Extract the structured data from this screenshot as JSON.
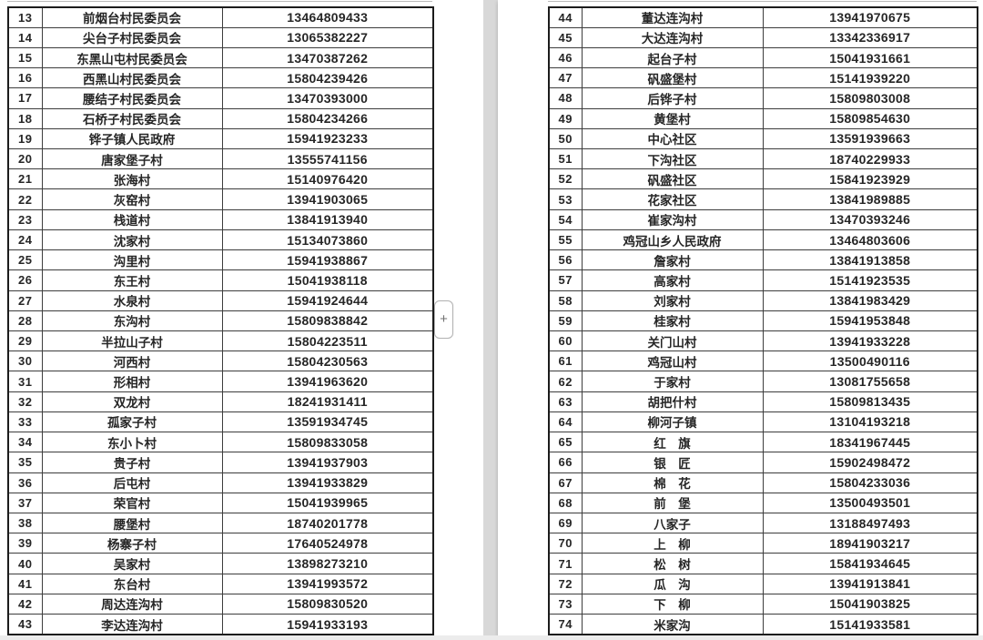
{
  "viewer": {
    "gap_color": "#d8d8d8",
    "page_color": "#ffffff",
    "text_color": "#262626"
  },
  "expand_button": {
    "label": "+"
  },
  "left_table": {
    "columns": [
      "row-number",
      "organization-name",
      "phone-number"
    ],
    "rows": [
      {
        "no": "13",
        "name": "前烟台村民委员会",
        "phone": "13464809433"
      },
      {
        "no": "14",
        "name": "尖台子村民委员会",
        "phone": "13065382227"
      },
      {
        "no": "15",
        "name": "东黑山屯村民委员会",
        "phone": "13470387262"
      },
      {
        "no": "16",
        "name": "西黑山村民委员会",
        "phone": "15804239426"
      },
      {
        "no": "17",
        "name": "腰结子村民委员会",
        "phone": "13470393000"
      },
      {
        "no": "18",
        "name": "石桥子村民委员会",
        "phone": "15804234266"
      },
      {
        "no": "19",
        "name": "铧子镇人民政府",
        "phone": "15941923233"
      },
      {
        "no": "20",
        "name": "唐家堡子村",
        "phone": "13555741156"
      },
      {
        "no": "21",
        "name": "张海村",
        "phone": "15140976420"
      },
      {
        "no": "22",
        "name": "灰窑村",
        "phone": "13941903065"
      },
      {
        "no": "23",
        "name": "栈道村",
        "phone": "13841913940"
      },
      {
        "no": "24",
        "name": "沈家村",
        "phone": "15134073860"
      },
      {
        "no": "25",
        "name": "沟里村",
        "phone": "15941938867"
      },
      {
        "no": "26",
        "name": "东王村",
        "phone": "15041938118"
      },
      {
        "no": "27",
        "name": "水泉村",
        "phone": "15941924644"
      },
      {
        "no": "28",
        "name": "东沟村",
        "phone": "15809838842"
      },
      {
        "no": "29",
        "name": "半拉山子村",
        "phone": "15804223511"
      },
      {
        "no": "30",
        "name": "河西村",
        "phone": "15804230563"
      },
      {
        "no": "31",
        "name": "形相村",
        "phone": "13941963620"
      },
      {
        "no": "32",
        "name": "双龙村",
        "phone": "18241931411"
      },
      {
        "no": "33",
        "name": "孤家子村",
        "phone": "13591934745"
      },
      {
        "no": "34",
        "name": "东小卜村",
        "phone": "15809833058"
      },
      {
        "no": "35",
        "name": "贵子村",
        "phone": "13941937903"
      },
      {
        "no": "36",
        "name": "后屯村",
        "phone": "13941933829"
      },
      {
        "no": "37",
        "name": "荣官村",
        "phone": "15041939965"
      },
      {
        "no": "38",
        "name": "腰堡村",
        "phone": "18740201778"
      },
      {
        "no": "39",
        "name": "杨寨子村",
        "phone": "17640524978"
      },
      {
        "no": "40",
        "name": "吴家村",
        "phone": "13898273210"
      },
      {
        "no": "41",
        "name": "东台村",
        "phone": "13941993572"
      },
      {
        "no": "42",
        "name": "周达连沟村",
        "phone": "15809830520"
      },
      {
        "no": "43",
        "name": "李达连沟村",
        "phone": "15941933193"
      }
    ]
  },
  "right_table": {
    "columns": [
      "row-number",
      "organization-name",
      "phone-number"
    ],
    "rows": [
      {
        "no": "44",
        "name": "董达连沟村",
        "phone": "13941970675"
      },
      {
        "no": "45",
        "name": "大达连沟村",
        "phone": "13342336917"
      },
      {
        "no": "46",
        "name": "起台子村",
        "phone": "15041931661"
      },
      {
        "no": "47",
        "name": "矾盛堡村",
        "phone": "15141939220"
      },
      {
        "no": "48",
        "name": "后铧子村",
        "phone": "15809803008"
      },
      {
        "no": "49",
        "name": "黄堡村",
        "phone": "15809854630"
      },
      {
        "no": "50",
        "name": "中心社区",
        "phone": "13591939663"
      },
      {
        "no": "51",
        "name": "下沟社区",
        "phone": "18740229933"
      },
      {
        "no": "52",
        "name": "矾盛社区",
        "phone": "15841923929"
      },
      {
        "no": "53",
        "name": "花家社区",
        "phone": "13841989885"
      },
      {
        "no": "54",
        "name": "崔家沟村",
        "phone": "13470393246"
      },
      {
        "no": "55",
        "name": "鸡冠山乡人民政府",
        "phone": "13464803606"
      },
      {
        "no": "56",
        "name": "詹家村",
        "phone": "13841913858"
      },
      {
        "no": "57",
        "name": "高家村",
        "phone": "15141923535"
      },
      {
        "no": "58",
        "name": "刘家村",
        "phone": "13841983429"
      },
      {
        "no": "59",
        "name": "桂家村",
        "phone": "15941953848"
      },
      {
        "no": "60",
        "name": "关门山村",
        "phone": "13941933228"
      },
      {
        "no": "61",
        "name": "鸡冠山村",
        "phone": "13500490116"
      },
      {
        "no": "62",
        "name": "于家村",
        "phone": "13081755658"
      },
      {
        "no": "63",
        "name": "胡把什村",
        "phone": "15809813435"
      },
      {
        "no": "64",
        "name": "柳河子镇",
        "phone": "13104193218"
      },
      {
        "no": "65",
        "name": "红　旗",
        "phone": "18341967445"
      },
      {
        "no": "66",
        "name": "银　匠",
        "phone": "15902498472"
      },
      {
        "no": "67",
        "name": "棉　花",
        "phone": "15804233036"
      },
      {
        "no": "68",
        "name": "前　堡",
        "phone": "13500493501"
      },
      {
        "no": "69",
        "name": "八家子",
        "phone": "13188497493"
      },
      {
        "no": "70",
        "name": "上　柳",
        "phone": "18941903217"
      },
      {
        "no": "71",
        "name": "松　树",
        "phone": "15841934645"
      },
      {
        "no": "72",
        "name": "瓜　沟",
        "phone": "13941913841"
      },
      {
        "no": "73",
        "name": "下　柳",
        "phone": "15041903825"
      },
      {
        "no": "74",
        "name": "米家沟",
        "phone": "15141933581"
      }
    ]
  }
}
